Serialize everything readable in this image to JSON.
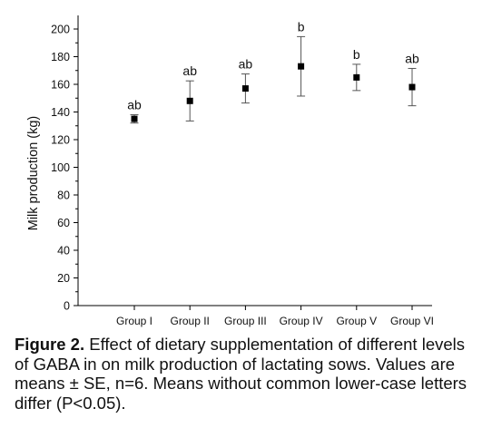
{
  "chart_data": {
    "type": "scatter",
    "categories": [
      "Group I",
      "Group II",
      "Group III",
      "Group IV",
      "Group V",
      "Group VI"
    ],
    "series": [
      {
        "values": [
          135,
          148,
          157,
          173,
          165,
          158
        ],
        "error": [
          3,
          14.5,
          10.5,
          21.5,
          9.5,
          13.5
        ],
        "letters": [
          "ab",
          "ab",
          "ab",
          "b",
          "b",
          "ab"
        ]
      }
    ],
    "xlabel": "",
    "ylabel": "Milk production (kg)",
    "ylim": [
      0,
      200
    ],
    "yticks": [
      0,
      20,
      40,
      60,
      80,
      100,
      120,
      140,
      160,
      180,
      200
    ],
    "grid": false
  },
  "caption": {
    "label": "Figure 2.",
    "text": " Effect of dietary supplementation of different levels of GABA in on milk production of lactating sows. Values are means ± SE, n=6. Means without common lower-case letters differ (P<0.05)."
  }
}
